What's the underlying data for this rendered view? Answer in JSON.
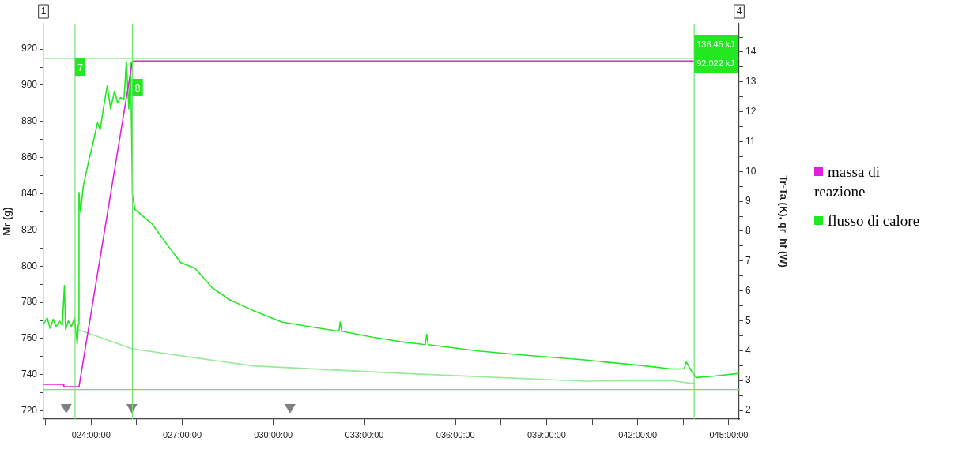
{
  "chart_data": {
    "type": "line",
    "ylabel": "Mr (g)",
    "y2label": "Tr-Ta (K), qr_hf (W)",
    "xlim": [
      22.43,
      45.34
    ],
    "xticks": [
      {
        "value": 22.5,
        "label": null
      },
      {
        "value": 24,
        "label": "024:00:00"
      },
      {
        "value": 25.5,
        "label": null
      },
      {
        "value": 27,
        "label": "027:00:00"
      },
      {
        "value": 28.5,
        "label": null
      },
      {
        "value": 30,
        "label": "030:00:00"
      },
      {
        "value": 31.5,
        "label": null
      },
      {
        "value": 33,
        "label": "033:00:00"
      },
      {
        "value": 34.5,
        "label": null
      },
      {
        "value": 36,
        "label": "036:00:00"
      },
      {
        "value": 37.5,
        "label": null
      },
      {
        "value": 39,
        "label": "039:00:00"
      },
      {
        "value": 40.5,
        "label": null
      },
      {
        "value": 42,
        "label": "042:00:00"
      },
      {
        "value": 43.5,
        "label": null
      },
      {
        "value": 45,
        "label": "045:00:00"
      }
    ],
    "ylim": [
      715.5,
      934
    ],
    "yticks": [
      720,
      {
        "value": 730,
        "label": null
      },
      740,
      {
        "value": 750,
        "label": null
      },
      760,
      {
        "value": 770,
        "label": null
      },
      780,
      {
        "value": 790,
        "label": null
      },
      800,
      {
        "value": 810,
        "label": null
      },
      820,
      {
        "value": 830,
        "label": null
      },
      840,
      {
        "value": 850,
        "label": null
      },
      860,
      {
        "value": 870,
        "label": null
      },
      880,
      {
        "value": 890,
        "label": null
      },
      900,
      {
        "value": 910,
        "label": null
      },
      920
    ],
    "y2lim": [
      1.71,
      14.95
    ],
    "y2ticks": [
      2,
      {
        "value": 2.5,
        "label": null
      },
      3,
      {
        "value": 3.5,
        "label": null
      },
      4,
      {
        "value": 4.5,
        "label": null
      },
      5,
      {
        "value": 5.5,
        "label": null
      },
      6,
      {
        "value": 6.5,
        "label": null
      },
      7,
      {
        "value": 7.5,
        "label": null
      },
      8,
      {
        "value": 8.5,
        "label": null
      },
      9,
      {
        "value": 9.5,
        "label": null
      },
      10,
      {
        "value": 10.5,
        "label": null
      },
      11,
      {
        "value": 11.5,
        "label": null
      },
      12,
      {
        "value": 12.5,
        "label": null
      },
      13,
      {
        "value": 13.5,
        "label": null
      },
      14,
      {
        "value": 14.5,
        "label": null
      }
    ],
    "grid": false,
    "legend": "right",
    "series": [
      {
        "name": "massa di reazione",
        "color": "#e020e0",
        "x": [
          22.43,
          23.09,
          23.1,
          23.6,
          25.36,
          43.86
        ],
        "values": [
          734.7,
          734.7,
          733.4,
          733.4,
          913.4,
          913.4
        ]
      },
      {
        "name": "flusso di calore",
        "color": "#22e822",
        "axis": "y2",
        "x": [
          22.43,
          22.55,
          22.65,
          22.75,
          22.85,
          22.95,
          23.05,
          23.12,
          23.16,
          23.25,
          23.35,
          23.45,
          23.54,
          23.58,
          23.6,
          23.65,
          23.74,
          23.92,
          24.05,
          24.21,
          24.3,
          24.4,
          24.53,
          24.64,
          24.77,
          24.87,
          24.97,
          25.08,
          25.16,
          25.24,
          25.3,
          25.36,
          25.44,
          26.0,
          26.48,
          26.95,
          27.42,
          28.0,
          28.57,
          29.3,
          30.27,
          31.2,
          32.16,
          32.2,
          32.25,
          33.26,
          34.2,
          35.0,
          35.05,
          35.1,
          36.75,
          38.25,
          40.24,
          42.24,
          43.1,
          43.53,
          43.6,
          43.78,
          43.92,
          44.53,
          45.33
        ],
        "values": [
          4.88,
          5.1,
          4.75,
          5.05,
          4.8,
          5.0,
          4.85,
          6.18,
          4.7,
          5.0,
          4.8,
          5.1,
          4.22,
          4.9,
          9.3,
          8.64,
          9.5,
          10.36,
          10.9,
          11.63,
          11.4,
          12.1,
          12.87,
          12.1,
          12.69,
          12.3,
          12.48,
          12.4,
          13.69,
          12.1,
          13.64,
          9.22,
          8.73,
          8.25,
          7.58,
          6.95,
          6.76,
          6.09,
          5.7,
          5.36,
          4.96,
          4.8,
          4.65,
          4.96,
          4.65,
          4.45,
          4.3,
          4.2,
          4.55,
          4.2,
          3.99,
          3.85,
          3.69,
          3.49,
          3.39,
          3.39,
          3.62,
          3.3,
          3.1,
          3.15,
          3.24
        ]
      },
      {
        "color": "#98ea98",
        "axis": "y2",
        "x": [
          23.57,
          25.36,
          28.28,
          29.32,
          34.26,
          40.24,
          43.1,
          43.73,
          43.86
        ],
        "values": [
          4.7,
          4.06,
          3.64,
          3.49,
          3.24,
          2.98,
          3.0,
          2.91,
          2.91
        ]
      },
      {
        "type": "scatter",
        "marker": "triangle",
        "color": "#7f7f7f",
        "x": [
          23.18,
          25.34,
          30.55
        ],
        "values": [
          722,
          722,
          722
        ]
      }
    ],
    "ref_lines": [
      {
        "axis": "x",
        "value": 23.47,
        "color": "#70e070"
      },
      {
        "axis": "x",
        "value": 25.36,
        "color": "#70e070"
      },
      {
        "axis": "x",
        "value": 43.86,
        "color": "#70e070"
      },
      {
        "axis": "y2",
        "value": 13.79,
        "color": "#70e070"
      },
      {
        "axis": "y2",
        "value": 2.7,
        "color": "#70e070"
      }
    ],
    "annotations": [
      "1",
      "4",
      "7",
      "8",
      "136.45 kJ",
      "92.022 kJ"
    ]
  }
}
